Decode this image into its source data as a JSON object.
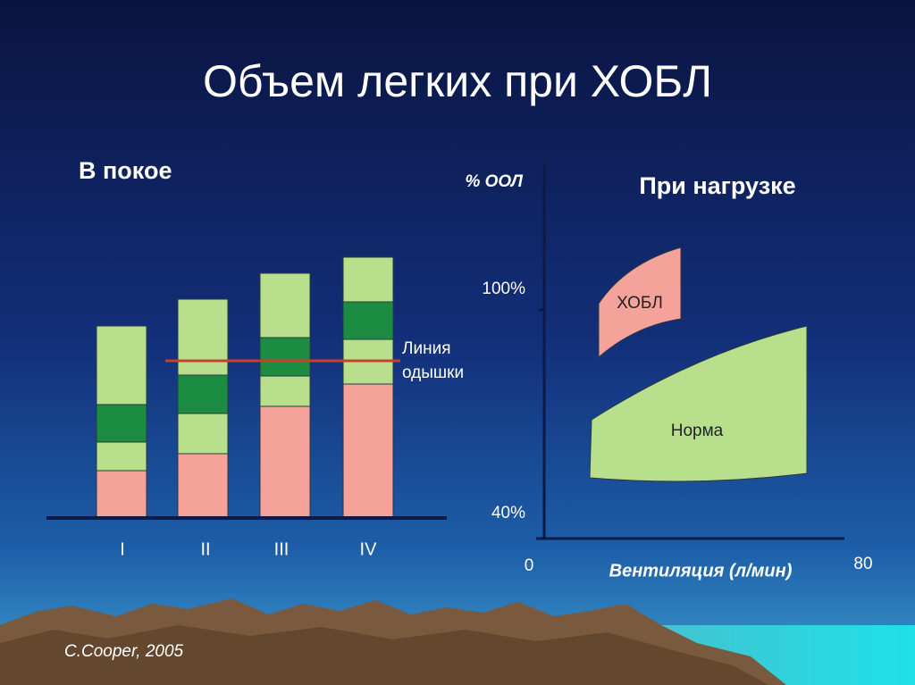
{
  "header": {
    "title": "Объем легких при ХОБЛ"
  },
  "rest_panel": {
    "title": "В покое",
    "categories": [
      "I",
      "II",
      "III",
      "IV"
    ],
    "dyspnea_line": [
      "Линия",
      "одышки"
    ]
  },
  "load_panel": {
    "title": "При нагрузке",
    "y_label": "% ООЛ",
    "y_tick_top": "100%",
    "y_tick_bottom": "40%",
    "x_tick_left": "0",
    "x_tick_right": "80",
    "x_label": "Вентиляция (л/мин)",
    "copd_label": "ХОБЛ",
    "norm_label": "Норма"
  },
  "footer": {
    "citation": "C.Cooper, 2005"
  }
}
